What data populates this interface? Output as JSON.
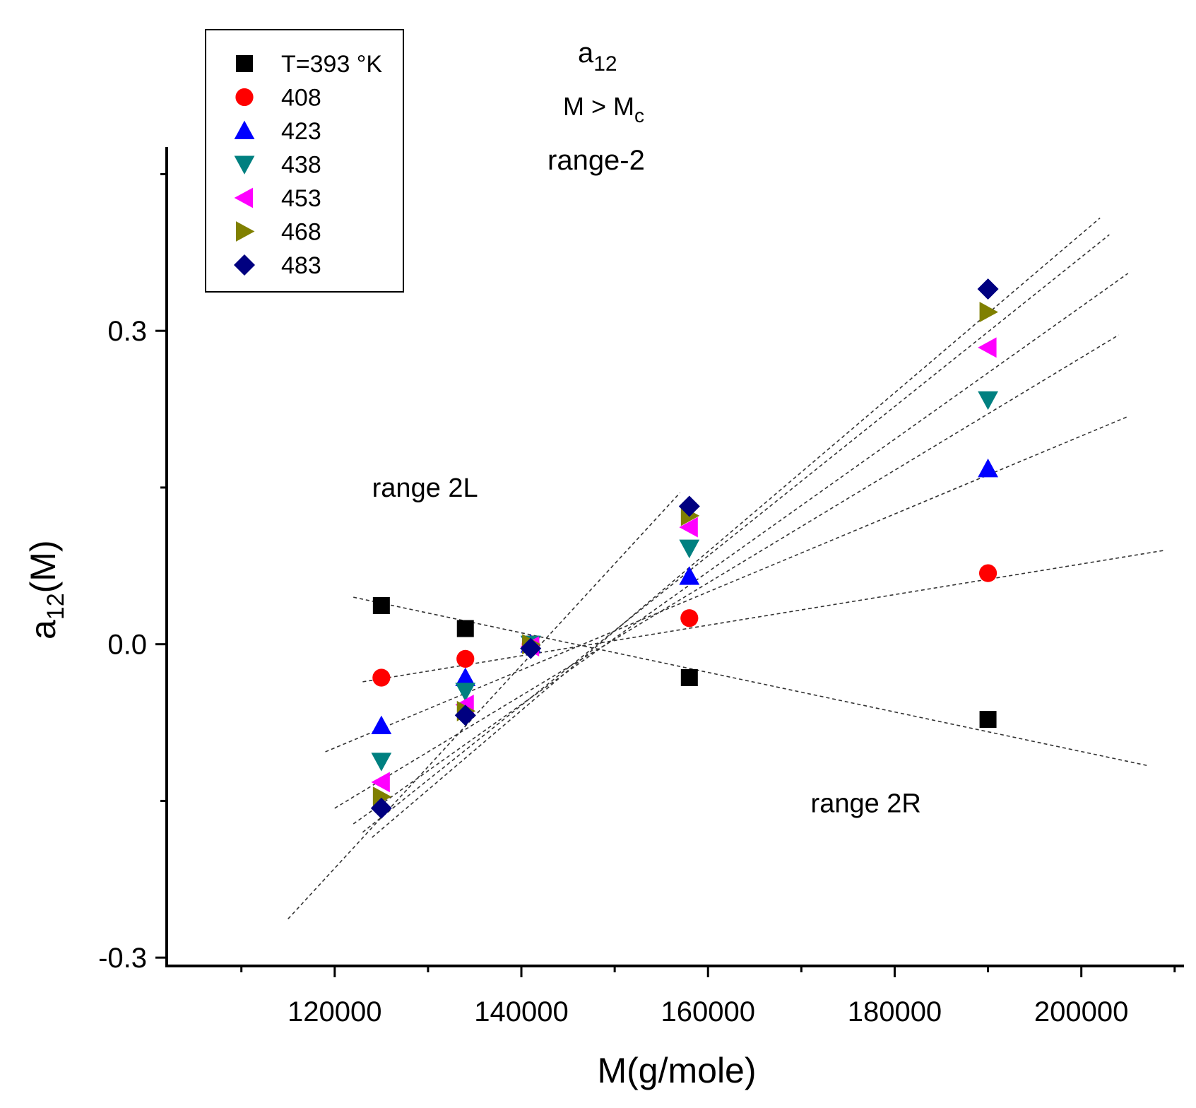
{
  "chart_data": {
    "type": "scatter",
    "title": {
      "main": "a",
      "main_sub": "12",
      "line2": "M > M",
      "line2_sub": "c",
      "line3": "range-2"
    },
    "xlabel": "M(g/mole)",
    "ylabel": "a",
    "ylabel_sub": "12",
    "ylabel_suffix": "(M)",
    "xlim": [
      102000,
      211000
    ],
    "ylim": [
      -0.308,
      0.476
    ],
    "xticks": [
      {
        "value": 120000,
        "label": "120000"
      },
      {
        "value": 140000,
        "label": "140000"
      },
      {
        "value": 160000,
        "label": "160000"
      },
      {
        "value": 180000,
        "label": "180000"
      },
      {
        "value": 200000,
        "label": "200000"
      }
    ],
    "xminor": [
      110000,
      130000,
      150000,
      170000,
      190000,
      210000
    ],
    "yticks": [
      {
        "value": -0.3,
        "label": "-0.3"
      },
      {
        "value": 0.0,
        "label": "0.0"
      },
      {
        "value": 0.3,
        "label": "0.3"
      }
    ],
    "annotations": [
      {
        "text": "range 2L",
        "x": 124000,
        "y": 0.141
      },
      {
        "text": "range 2R",
        "x": 171000,
        "y": -0.161
      }
    ],
    "series": [
      {
        "name": "T=393",
        "legend_label": "T=393 °K",
        "marker": "square",
        "color": "#000000",
        "x": [
          125000,
          134000,
          141000,
          158000,
          190000
        ],
        "y": [
          0.037,
          0.015,
          0.0,
          -0.032,
          -0.072
        ],
        "fit": {
          "x": [
            122000,
            207000
          ],
          "y": [
            0.045,
            -0.116
          ]
        }
      },
      {
        "name": "408",
        "legend_label": "408",
        "marker": "circle",
        "color": "#ff0000",
        "x": [
          125000,
          134000,
          141000,
          158000,
          190000
        ],
        "y": [
          -0.032,
          -0.014,
          0.0,
          0.025,
          0.068
        ],
        "fit": {
          "x": [
            123000,
            209000
          ],
          "y": [
            -0.036,
            0.09
          ]
        }
      },
      {
        "name": "423",
        "legend_label": "423",
        "marker": "triangle-up",
        "color": "#0000ff",
        "x": [
          125000,
          134000,
          141000,
          158000,
          190000
        ],
        "y": [
          -0.078,
          -0.032,
          0.0,
          0.065,
          0.168
        ],
        "fit": {
          "x": [
            119000,
            205000
          ],
          "y": [
            -0.103,
            0.218
          ]
        }
      },
      {
        "name": "438",
        "legend_label": "438",
        "marker": "triangle-down",
        "color": "#008080",
        "x": [
          125000,
          134000,
          141000,
          158000,
          190000
        ],
        "y": [
          -0.112,
          -0.045,
          0.0,
          0.092,
          0.234
        ],
        "fit": {
          "x": [
            120000,
            204000
          ],
          "y": [
            -0.157,
            0.296
          ]
        }
      },
      {
        "name": "453",
        "legend_label": "453",
        "marker": "triangle-left",
        "color": "#ff00ff",
        "x": [
          125000,
          134000,
          141000,
          158000,
          190000
        ],
        "y": [
          -0.132,
          -0.058,
          -0.002,
          0.112,
          0.284
        ],
        "fit": {
          "x": [
            122000,
            205000
          ],
          "y": [
            -0.172,
            0.355
          ]
        }
      },
      {
        "name": "468",
        "legend_label": "468",
        "marker": "triangle-right",
        "color": "#808000",
        "x": [
          125000,
          134000,
          141000,
          158000,
          190000
        ],
        "y": [
          -0.146,
          -0.064,
          0.0,
          0.123,
          0.318
        ],
        "fit": {
          "x": [
            123000,
            203000
          ],
          "y": [
            -0.18,
            0.392
          ]
        }
      },
      {
        "name": "483",
        "legend_label": "483",
        "marker": "diamond",
        "color": "#000080",
        "x": [
          125000,
          134000,
          141000,
          158000,
          190000
        ],
        "y": [
          -0.157,
          -0.068,
          -0.004,
          0.132,
          0.34
        ],
        "fit": {
          "x": [
            124000,
            202000
          ],
          "y": [
            -0.185,
            0.408
          ]
        }
      }
    ],
    "extra_fit": {
      "x": [
        115000,
        157000
      ],
      "y": [
        -0.263,
        0.145
      ]
    },
    "legend_position": "top-left"
  }
}
